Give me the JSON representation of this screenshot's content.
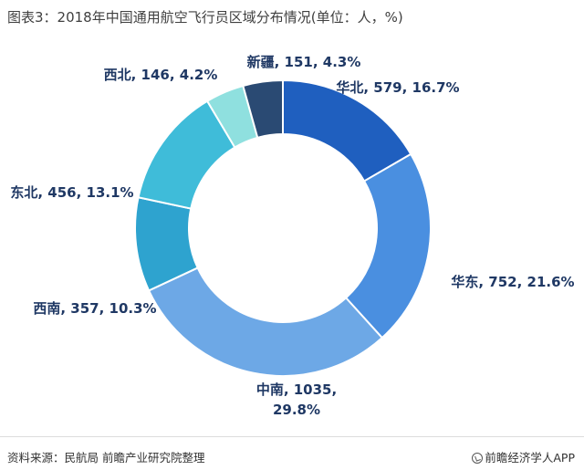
{
  "title": "图表3：2018年中国通用航空飞行员区域分布情况(单位：人，%)",
  "footer": {
    "source": "资料来源：民航局 前瞻产业研究院整理",
    "brand": "前瞻经济学人APP"
  },
  "chart_data": {
    "type": "donut",
    "title": "图表3：2018年中国通用航空飞行员区域分布情况(单位：人，%)",
    "start_angle_deg": 0,
    "direction": "clockwise",
    "slices": [
      {
        "name": "华北",
        "value": 579,
        "percent": 16.7,
        "color": "#1f5fbf",
        "label": "华北, 579, 16.7%"
      },
      {
        "name": "华东",
        "value": 752,
        "percent": 21.6,
        "color": "#4a8fe0",
        "label": "华东, 752, 21.6%"
      },
      {
        "name": "中南",
        "value": 1035,
        "percent": 29.8,
        "color": "#6da8e6",
        "label": [
          "中南, 1035,",
          "29.8%"
        ]
      },
      {
        "name": "西南",
        "value": 357,
        "percent": 10.3,
        "color": "#2ea3cf",
        "label": "西南, 357, 10.3%"
      },
      {
        "name": "东北",
        "value": 456,
        "percent": 13.1,
        "color": "#3fbcd9",
        "label": "东北, 456, 13.1%"
      },
      {
        "name": "西北",
        "value": 146,
        "percent": 4.2,
        "color": "#8fe0df",
        "label": "西北, 146, 4.2%"
      },
      {
        "name": "新疆",
        "value": 151,
        "percent": 4.3,
        "color": "#2a4a73",
        "label": "新疆, 151, 4.3%"
      }
    ]
  }
}
